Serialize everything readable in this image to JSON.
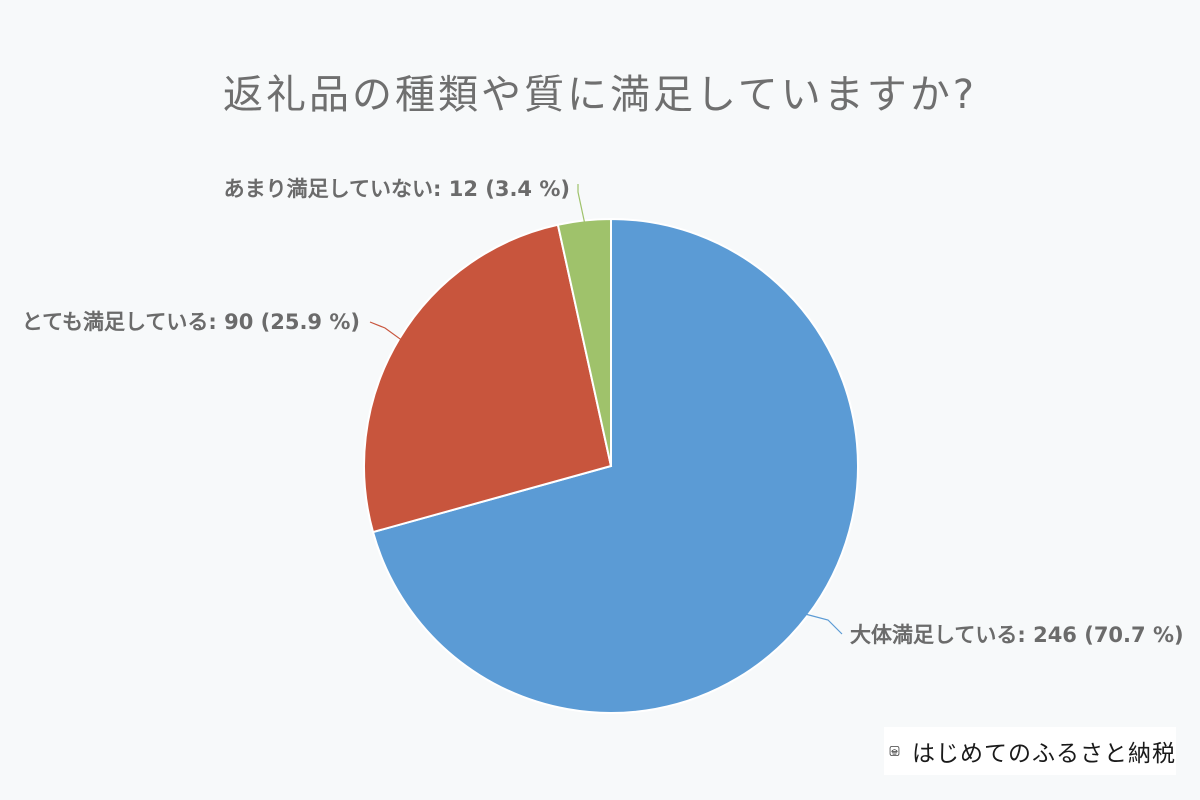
{
  "chart_data": {
    "type": "pie",
    "title": "返礼品の種類や質に満足していますか?",
    "slices": [
      {
        "label": "大体満足している",
        "value": 246,
        "percent": "70.7 %",
        "color": "#5b9bd5"
      },
      {
        "label": "とても満足している",
        "value": 90,
        "percent": "25.9 %",
        "color": "#c8553d"
      },
      {
        "label": "あまり満足していない",
        "value": 12,
        "percent": "3.4 %",
        "color": "#9fc26b"
      }
    ],
    "start_angle": "12 o'clock",
    "direction": "clockwise",
    "legend": "none",
    "labels": "outside-with-leader-lines"
  },
  "brand": {
    "name": "はじめてのふるさと納税",
    "logo_icon": "furusato-logo-icon"
  }
}
